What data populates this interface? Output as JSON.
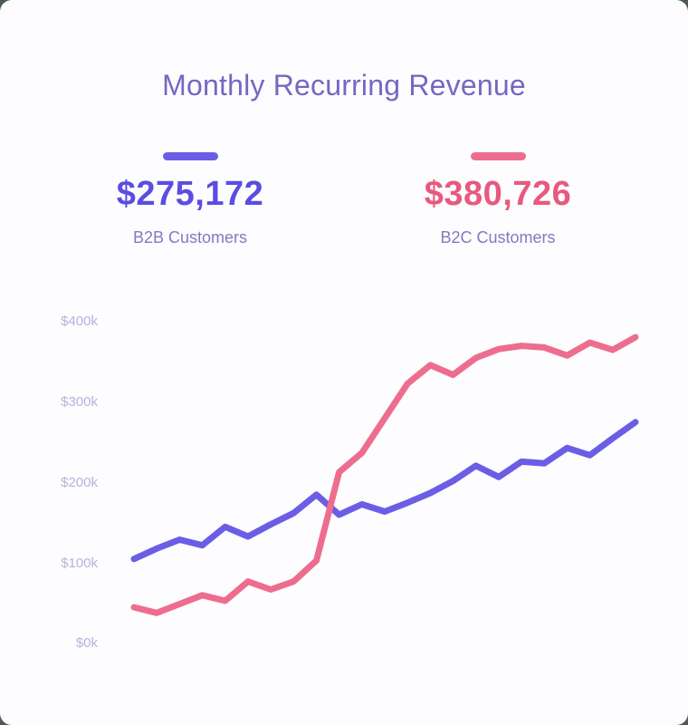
{
  "page": {
    "background_color": "#4b5b51",
    "card_color": "#fdfcfe"
  },
  "header": {
    "title": "Monthly Recurring Revenue",
    "title_color": "#7468c1"
  },
  "legend": {
    "b2b": {
      "value": "$275,172",
      "label": "B2B Customers",
      "swatch_color": "#6b5de6",
      "value_color": "#5b4de0"
    },
    "b2c": {
      "value": "$380,726",
      "label": "B2C Customers",
      "swatch_color": "#ee6d8f",
      "value_color": "#e7597f"
    }
  },
  "chart_data": {
    "type": "line",
    "title": "Monthly Recurring Revenue",
    "xlabel": "",
    "ylabel": "",
    "ylim": [
      0,
      400000
    ],
    "grid": false,
    "legend_position": "top",
    "ylabel_ticks": [
      "$400k",
      "$300k",
      "$200k",
      "$100k",
      "$0k"
    ],
    "series": [
      {
        "name": "B2B Customers",
        "color": "#6b5de6",
        "current_value": 275172,
        "values": [
          105000,
          118000,
          129000,
          122000,
          145000,
          133000,
          148000,
          162000,
          185000,
          160000,
          173000,
          164000,
          175000,
          187000,
          202000,
          221000,
          207000,
          226000,
          224000,
          243000,
          234000,
          255000,
          275172
        ]
      },
      {
        "name": "B2C Customers",
        "color": "#ee6d8f",
        "current_value": 380726,
        "values": [
          45000,
          38000,
          49000,
          60000,
          53000,
          77000,
          67000,
          77000,
          103000,
          213000,
          237000,
          280000,
          323000,
          346000,
          334000,
          355000,
          366000,
          370000,
          368000,
          358000,
          374000,
          365000,
          380726
        ]
      }
    ]
  }
}
